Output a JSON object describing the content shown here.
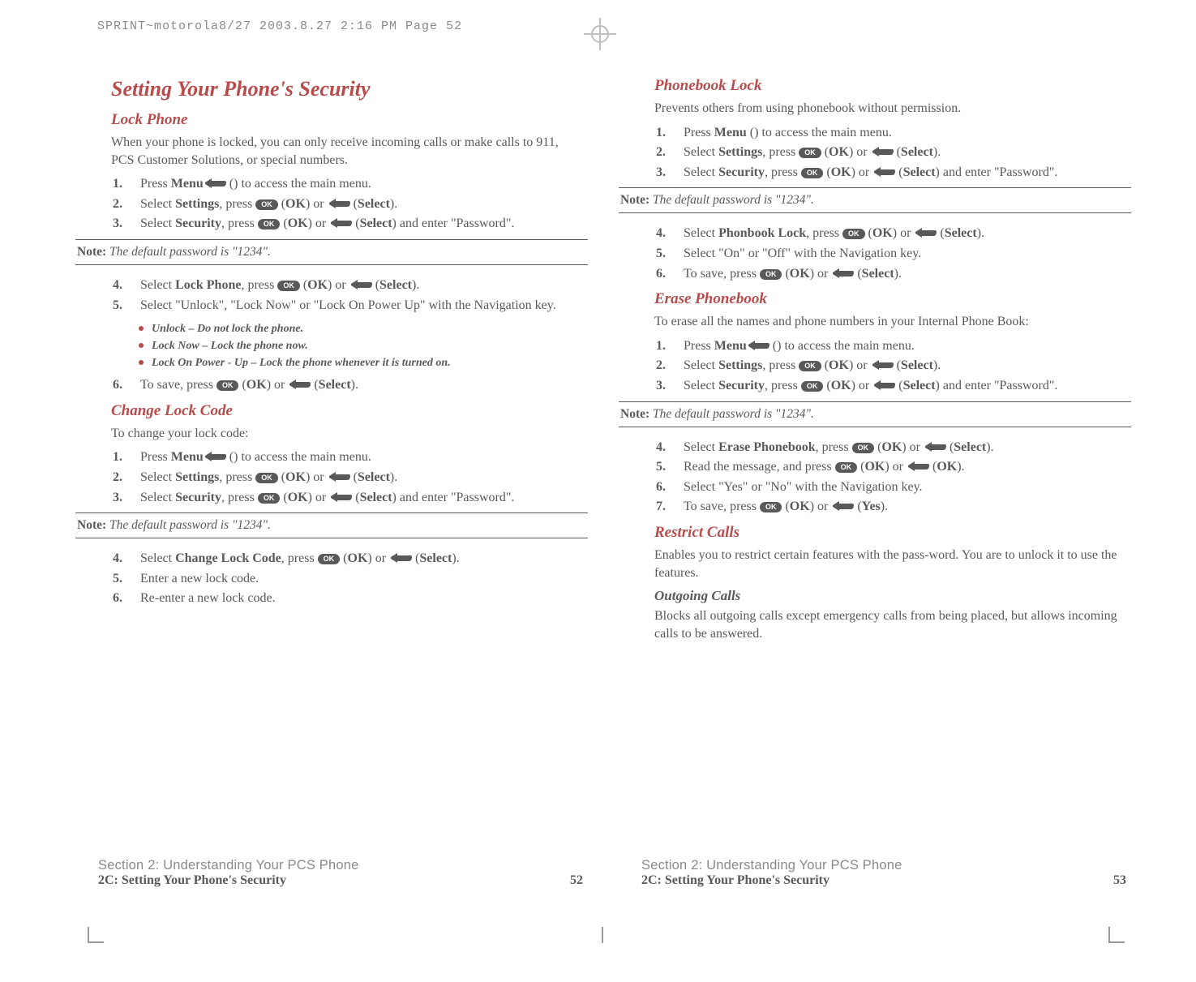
{
  "top_header": "SPRINT~motorola8/27  2003.8.27  2:16 PM  Page 52",
  "colors": {
    "heading": "#b84b4b",
    "text": "#595959",
    "muted": "#8a8a8a",
    "rule": "#595959"
  },
  "icons": {
    "ok_label": "OK"
  },
  "left": {
    "h1": "Setting Your Phone's Security",
    "lock_phone": {
      "title": "Lock Phone",
      "intro": "When your phone is locked, you can only receive incoming calls or make calls to 911, PCS Customer Solutions, or special numbers.",
      "steps_a": [
        {
          "n": "1.",
          "pre": "Press ",
          "menu": true,
          "post": " (",
          "b1": "Menu",
          "post2": ") to access the main menu."
        },
        {
          "n": "2.",
          "pre": "Select ",
          "b0": "Settings",
          "mid": ", press ",
          "ok": true,
          "mid2": " (",
          "b1": "OK",
          "mid3": ") or ",
          "menu": true,
          "mid4": " (",
          "b2": "Select",
          "post": ")."
        },
        {
          "n": "3.",
          "pre": "Select ",
          "b0": "Security",
          "mid": ", press ",
          "ok": true,
          "mid2": " (",
          "b1": "OK",
          "mid3": ") or ",
          "menu": true,
          "mid4": " (",
          "b2": "Select",
          "post": ") and enter \"Password\"."
        }
      ],
      "note_label": "Note:",
      "note_text": " The default password is \"1234\".",
      "steps_b": [
        {
          "n": "4.",
          "pre": "Select ",
          "b0": "Lock Phone",
          "mid": ", press ",
          "ok": true,
          "mid2": " (",
          "b1": "OK",
          "mid3": ") or ",
          "menu": true,
          "mid4": " (",
          "b2": "Select",
          "post": ")."
        },
        {
          "n": "5.",
          "plain": "Select \"Unlock\", \"Lock Now\" or \"Lock On Power Up\" with the Navigation key."
        }
      ],
      "bullets": [
        "Unlock – Do not lock the phone.",
        "Lock Now – Lock the phone now.",
        "Lock On Power - Up – Lock the phone whenever it is turned on."
      ],
      "steps_c": [
        {
          "n": "6.",
          "pre": "To save, press ",
          "ok": true,
          "mid2": " (",
          "b1": "OK",
          "mid3": ") or ",
          "menu": true,
          "mid4": " (",
          "b2": "Select",
          "post": ")."
        }
      ]
    },
    "change_code": {
      "title": "Change Lock Code",
      "intro": "To change your lock code:",
      "steps_a": [
        {
          "n": "1.",
          "pre": "Press ",
          "menu": true,
          "post": " (",
          "b1": "Menu",
          "post2": ") to access the main menu."
        },
        {
          "n": "2.",
          "pre": "Select ",
          "b0": "Settings",
          "mid": ", press ",
          "ok": true,
          "mid2": " (",
          "b1": "OK",
          "mid3": ") or ",
          "menu": true,
          "mid4": " (",
          "b2": "Select",
          "post": ")."
        },
        {
          "n": "3.",
          "pre": "Select ",
          "b0": "Security",
          "mid": ", press ",
          "ok": true,
          "mid2": " (",
          "b1": "OK",
          "mid3": ") or ",
          "menu": true,
          "mid4": " (",
          "b2": "Select",
          "post": ") and enter \"Password\"."
        }
      ],
      "note_label": "Note:",
      "note_text": " The default password is \"1234\".",
      "steps_b": [
        {
          "n": "4.",
          "pre": "Select ",
          "b0": "Change Lock Code",
          "mid": ", press ",
          "ok": true,
          "mid2": " (",
          "b1": "OK",
          "mid3": ") or ",
          "menu": true,
          "mid4": " (",
          "b2": "Select",
          "post": ")."
        },
        {
          "n": "5.",
          "plain": "Enter a new lock code."
        },
        {
          "n": "6.",
          "plain": "Re-enter a new lock code."
        }
      ]
    },
    "footer_sec": "Section 2: Understanding Your PCS Phone",
    "footer_sub": "2C: Setting Your Phone's Security",
    "footer_page": "52"
  },
  "right": {
    "phonebook_lock": {
      "title": "Phonebook Lock",
      "intro": "Prevents others from using phonebook without permission.",
      "steps_a": [
        {
          "n": "1.",
          "pre": "Press ",
          "post": " (",
          "b1": "Menu",
          "post2": ") to access the main menu."
        },
        {
          "n": "2.",
          "pre": "Select ",
          "b0": "Settings",
          "mid": ", press ",
          "ok": true,
          "mid2": " (",
          "b1": "OK",
          "mid3": ") or ",
          "menu": true,
          "mid4": " (",
          "b2": "Select",
          "post": ")."
        },
        {
          "n": "3.",
          "pre": "Select ",
          "b0": "Security",
          "mid": ", press ",
          "ok": true,
          "mid2": " (",
          "b1": "OK",
          "mid3": ") or ",
          "menu": true,
          "mid4": " (",
          "b2": "Select",
          "post": ") and enter \"Password\"."
        }
      ],
      "note_label": "Note:",
      "note_text": " The default password is \"1234\".",
      "steps_b": [
        {
          "n": "4.",
          "pre": "Select ",
          "b0": "Phonbook Lock",
          "mid": ", press ",
          "ok": true,
          "mid2": " (",
          "b1": "OK",
          "mid3": ") or ",
          "menu": true,
          "mid4": " (",
          "b2": "Select",
          "post": ")."
        },
        {
          "n": "5.",
          "plain": "Select \"On\" or \"Off\" with the Navigation key."
        },
        {
          "n": "6.",
          "pre": "To save, press ",
          "ok": true,
          "mid2": " (",
          "b1": "OK",
          "mid3": ") or ",
          "menu": true,
          "mid4": " (",
          "b2": "Select",
          "post": ")."
        }
      ]
    },
    "erase_pb": {
      "title": "Erase Phonebook",
      "intro": "To erase all the names and phone numbers in your Internal Phone Book:",
      "steps_a": [
        {
          "n": "1.",
          "pre": "Press ",
          "menu": true,
          "post": " (",
          "b1": "Menu",
          "post2": ") to access the main menu."
        },
        {
          "n": "2.",
          "pre": "Select ",
          "b0": "Settings",
          "mid": ", press ",
          "ok": true,
          "mid2": " (",
          "b1": "OK",
          "mid3": ") or ",
          "menu": true,
          "mid4": " (",
          "b2": "Select",
          "post": ")."
        },
        {
          "n": "3.",
          "pre": "Select ",
          "b0": "Security",
          "mid": ", press ",
          "ok": true,
          "mid2": " (",
          "b1": "OK",
          "mid3": ") or ",
          "menu": true,
          "mid4": " (",
          "b2": "Select",
          "post": ") and enter \"Password\"."
        }
      ],
      "note_label": "Note:",
      "note_text": " The default password is \"1234\".",
      "steps_b": [
        {
          "n": "4.",
          "pre": "Select ",
          "b0": "Erase Phonebook",
          "mid": ", press ",
          "ok": true,
          "mid2": " (",
          "b1": "OK",
          "mid3": ") or ",
          "menu": true,
          "mid4": " (",
          "b2": "Select",
          "post": ")."
        },
        {
          "n": "5.",
          "pre": "Read the message, and press ",
          "ok": true,
          "mid2": " (",
          "b1": "OK",
          "mid3": ") or ",
          "menu": true,
          "mid4": " (",
          "b2": "OK",
          "post": ")."
        },
        {
          "n": "6.",
          "plain": "Select \"Yes\" or \"No\" with the Navigation key."
        },
        {
          "n": "7.",
          "pre": "To save, press ",
          "ok": true,
          "mid2": " (",
          "b1": "OK",
          "mid3": ") or ",
          "menu": true,
          "mid4": " (",
          "b2": "Yes",
          "post": ")."
        }
      ]
    },
    "restrict": {
      "title": "Restrict Calls",
      "intro": "Enables you to restrict certain features with the pass-word. You are to unlock it to use the features.",
      "sub_title": "Outgoing Calls",
      "sub_body": "Blocks all outgoing calls except emergency calls from being placed, but allows incoming calls to be answered."
    },
    "footer_sec": "Section 2: Understanding Your PCS Phone",
    "footer_sub": "2C: Setting Your Phone's Security",
    "footer_page": "53"
  }
}
